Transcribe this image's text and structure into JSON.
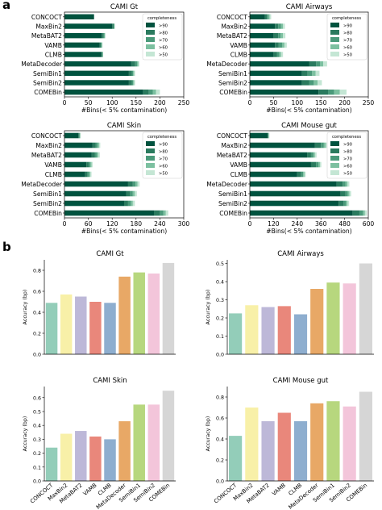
{
  "panel_labels": [
    "a",
    "b"
  ],
  "chart_data": [
    {
      "type": "bar",
      "orientation": "horizontal",
      "stacked": true,
      "title": "CAMI Gt",
      "xlabel": "#Bins(< 5% contamination)",
      "categories": [
        "CONCOCT",
        "MaxBin2",
        "MetaBAT2",
        "VAMB",
        "CLMB",
        "MetaDecoder",
        "SemiBin1",
        "SemiBin2",
        "COMEBin"
      ],
      "xticks": [
        0,
        50,
        100,
        150,
        200,
        250
      ],
      "xlim": [
        0,
        250
      ],
      "legend_title": "completeness",
      "legend_position": "top-right",
      "series": [
        {
          "name": ">90",
          "color": "#00533f",
          "values": [
            62,
            100,
            78,
            74,
            77,
            140,
            135,
            135,
            165
          ]
        },
        {
          "name": ">80",
          "color": "#2a7a5e",
          "values": [
            0,
            3,
            3,
            2,
            2,
            8,
            6,
            6,
            12
          ]
        },
        {
          "name": ">70",
          "color": "#4a9a7a",
          "values": [
            0,
            1,
            3,
            2,
            1,
            4,
            3,
            3,
            8
          ]
        },
        {
          "name": ">60",
          "color": "#7cc0a0",
          "values": [
            0,
            1,
            1,
            1,
            1,
            3,
            2,
            2,
            7
          ]
        },
        {
          "name": ">50",
          "color": "#c4e6d4",
          "values": [
            0,
            1,
            1,
            1,
            0,
            2,
            2,
            2,
            8
          ]
        }
      ]
    },
    {
      "type": "bar",
      "orientation": "horizontal",
      "stacked": true,
      "title": "CAMI Airways",
      "xlabel": "#Bins(< 5% contamination)",
      "categories": [
        "CONCOCT",
        "MaxBin2",
        "MetaBAT2",
        "VAMB",
        "CLMB",
        "MetaDecoder",
        "SemiBin1",
        "SemiBin2",
        "COMEBin"
      ],
      "xticks": [
        0,
        50,
        100,
        150,
        200,
        250
      ],
      "xlim": [
        0,
        250
      ],
      "legend_title": "completeness",
      "legend_position": "top-right",
      "series": [
        {
          "name": ">90",
          "color": "#00533f",
          "values": [
            32,
            53,
            50,
            53,
            50,
            125,
            110,
            110,
            145
          ]
        },
        {
          "name": ">80",
          "color": "#2a7a5e",
          "values": [
            4,
            7,
            10,
            8,
            7,
            15,
            12,
            15,
            20
          ]
        },
        {
          "name": ">70",
          "color": "#4a9a7a",
          "values": [
            3,
            6,
            5,
            7,
            5,
            8,
            9,
            10,
            13
          ]
        },
        {
          "name": ">60",
          "color": "#7cc0a0",
          "values": [
            3,
            4,
            5,
            5,
            4,
            7,
            8,
            8,
            12
          ]
        },
        {
          "name": ">50",
          "color": "#c4e6d4",
          "values": [
            3,
            4,
            5,
            5,
            4,
            8,
            8,
            9,
            14
          ]
        }
      ]
    },
    {
      "type": "bar",
      "orientation": "horizontal",
      "stacked": true,
      "title": "CAMI Skin",
      "xlabel": "#Bins(< 5% contamination)",
      "categories": [
        "CONCOCT",
        "MaxBin2",
        "MetaBAT2",
        "VAMB",
        "CLMB",
        "MetaDecoder",
        "SemiBin1",
        "SemiBin2",
        "COMEBin"
      ],
      "xticks": [
        0,
        60,
        120,
        180,
        240,
        300
      ],
      "xlim": [
        0,
        300
      ],
      "legend_title": "completeness",
      "legend_position": "top-right",
      "series": [
        {
          "name": ">90",
          "color": "#00533f",
          "values": [
            35,
            70,
            68,
            55,
            52,
            160,
            155,
            150,
            225
          ]
        },
        {
          "name": ">80",
          "color": "#2a7a5e",
          "values": [
            2,
            8,
            8,
            6,
            6,
            12,
            10,
            10,
            15
          ]
        },
        {
          "name": ">70",
          "color": "#4a9a7a",
          "values": [
            2,
            5,
            5,
            4,
            4,
            7,
            7,
            7,
            9
          ]
        },
        {
          "name": ">60",
          "color": "#7cc0a0",
          "values": [
            1,
            4,
            4,
            3,
            3,
            5,
            5,
            5,
            6
          ]
        },
        {
          "name": ">50",
          "color": "#c4e6d4",
          "values": [
            1,
            3,
            4,
            3,
            3,
            5,
            5,
            5,
            6
          ]
        }
      ]
    },
    {
      "type": "bar",
      "orientation": "horizontal",
      "stacked": true,
      "title": "CAMI Mouse gut",
      "xlabel": "#Bins(< 5% contamination)",
      "categories": [
        "CONCOCT",
        "MaxBin2",
        "MetaBAT2",
        "VAMB",
        "CLMB",
        "MetaDecoder",
        "SemiBin1",
        "SemiBin2",
        "COMEBin"
      ],
      "xticks": [
        0,
        120,
        240,
        360,
        480,
        600
      ],
      "xlim": [
        0,
        600
      ],
      "legend_title": "completeness",
      "legend_position": "top-right",
      "series": [
        {
          "name": ">90",
          "color": "#00533f",
          "values": [
            90,
            330,
            290,
            310,
            240,
            440,
            460,
            450,
            520
          ]
        },
        {
          "name": ">80",
          "color": "#2a7a5e",
          "values": [
            3,
            30,
            20,
            25,
            20,
            30,
            25,
            25,
            35
          ]
        },
        {
          "name": ">70",
          "color": "#4a9a7a",
          "values": [
            2,
            15,
            12,
            12,
            10,
            15,
            12,
            12,
            18
          ]
        },
        {
          "name": ">60",
          "color": "#7cc0a0",
          "values": [
            2,
            10,
            8,
            8,
            7,
            10,
            8,
            8,
            10
          ]
        },
        {
          "name": ">50",
          "color": "#c4e6d4",
          "values": [
            2,
            8,
            8,
            7,
            6,
            9,
            8,
            8,
            10
          ]
        }
      ]
    },
    {
      "type": "bar",
      "title": "CAMI Gt",
      "ylabel": "Accuracy (bp)",
      "categories": [
        "CONCOCT",
        "MaxBin2",
        "MetaBAT2",
        "VAMB",
        "CLMB",
        "MetaDecoder",
        "SemiBin1",
        "SemiBin2",
        "COMEBin"
      ],
      "values": [
        0.49,
        0.57,
        0.55,
        0.5,
        0.49,
        0.74,
        0.78,
        0.77,
        0.87
      ],
      "colors": [
        "#93cdb9",
        "#f8f0a8",
        "#bdb8d8",
        "#e9877b",
        "#8eaecf",
        "#e8a866",
        "#b7d77e",
        "#f3c5da",
        "#d6d6d6"
      ],
      "ylim": [
        0,
        0.9
      ],
      "yticks": [
        "0.0",
        "0.2",
        "0.4",
        "0.6",
        "0.8"
      ],
      "show_category_labels": false
    },
    {
      "type": "bar",
      "title": "CAMI Airways",
      "ylabel": "Accuracy (bp)",
      "categories": [
        "CONCOCT",
        "MaxBin2",
        "MetaBAT2",
        "VAMB",
        "CLMB",
        "MetaDecoder",
        "SemiBin1",
        "SemiBin2",
        "COMEBin"
      ],
      "values": [
        0.225,
        0.27,
        0.26,
        0.265,
        0.22,
        0.36,
        0.395,
        0.39,
        0.5
      ],
      "colors": [
        "#93cdb9",
        "#f8f0a8",
        "#bdb8d8",
        "#e9877b",
        "#8eaecf",
        "#e8a866",
        "#b7d77e",
        "#f3c5da",
        "#d6d6d6"
      ],
      "ylim": [
        0,
        0.52
      ],
      "yticks": [
        "0.0",
        "0.1",
        "0.2",
        "0.3",
        "0.4",
        "0.5"
      ],
      "show_category_labels": false
    },
    {
      "type": "bar",
      "title": "CAMI Skin",
      "ylabel": "Accuracy (bp)",
      "categories": [
        "CONCOCT",
        "MaxBin2",
        "MetaBAT2",
        "VAMB",
        "CLMB",
        "MetaDecoder",
        "SemiBin1",
        "SemiBin2",
        "COMEBin"
      ],
      "values": [
        0.24,
        0.34,
        0.36,
        0.32,
        0.3,
        0.43,
        0.55,
        0.55,
        0.65
      ],
      "colors": [
        "#93cdb9",
        "#f8f0a8",
        "#bdb8d8",
        "#e9877b",
        "#8eaecf",
        "#e8a866",
        "#b7d77e",
        "#f3c5da",
        "#d6d6d6"
      ],
      "ylim": [
        0,
        0.68
      ],
      "yticks": [
        "0.0",
        "0.1",
        "0.2",
        "0.3",
        "0.4",
        "0.5",
        "0.6"
      ],
      "show_category_labels": true
    },
    {
      "type": "bar",
      "title": "CAMI Mouse gut",
      "ylabel": "Accuracy (bp)",
      "categories": [
        "CONCOCT",
        "MaxBin2",
        "MetaBAT2",
        "VAMB",
        "CLMB",
        "MetaDecoder",
        "SemiBin1",
        "SemiBin2",
        "COMEBin"
      ],
      "values": [
        0.43,
        0.7,
        0.57,
        0.65,
        0.57,
        0.74,
        0.76,
        0.71,
        0.85
      ],
      "colors": [
        "#93cdb9",
        "#f8f0a8",
        "#bdb8d8",
        "#e9877b",
        "#8eaecf",
        "#e8a866",
        "#b7d77e",
        "#f3c5da",
        "#d6d6d6"
      ],
      "ylim": [
        0,
        0.9
      ],
      "yticks": [
        "0.0",
        "0.2",
        "0.4",
        "0.6",
        "0.8"
      ],
      "show_category_labels": true
    }
  ]
}
